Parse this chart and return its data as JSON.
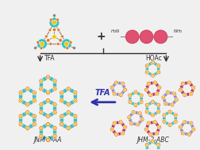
{
  "bg_color": "#f0f0f0",
  "label_jnm_aa": "JNM-3-AA",
  "label_jnm_abc": "JHM-3-ABC",
  "tfa_label": "TFA",
  "hoac_label": "HOAc",
  "mid_tfa_label": "TFA",
  "color_cyan": "#3BBFBF",
  "color_orange": "#E07820",
  "color_yellow": "#F0C800",
  "color_pink": "#E05070",
  "color_purple": "#8888CC",
  "color_magenta": "#B03060",
  "color_dark": "#303030",
  "color_arrow_blue": "#3030B0",
  "color_gray": "#888888",
  "color_white": "#ffffff"
}
